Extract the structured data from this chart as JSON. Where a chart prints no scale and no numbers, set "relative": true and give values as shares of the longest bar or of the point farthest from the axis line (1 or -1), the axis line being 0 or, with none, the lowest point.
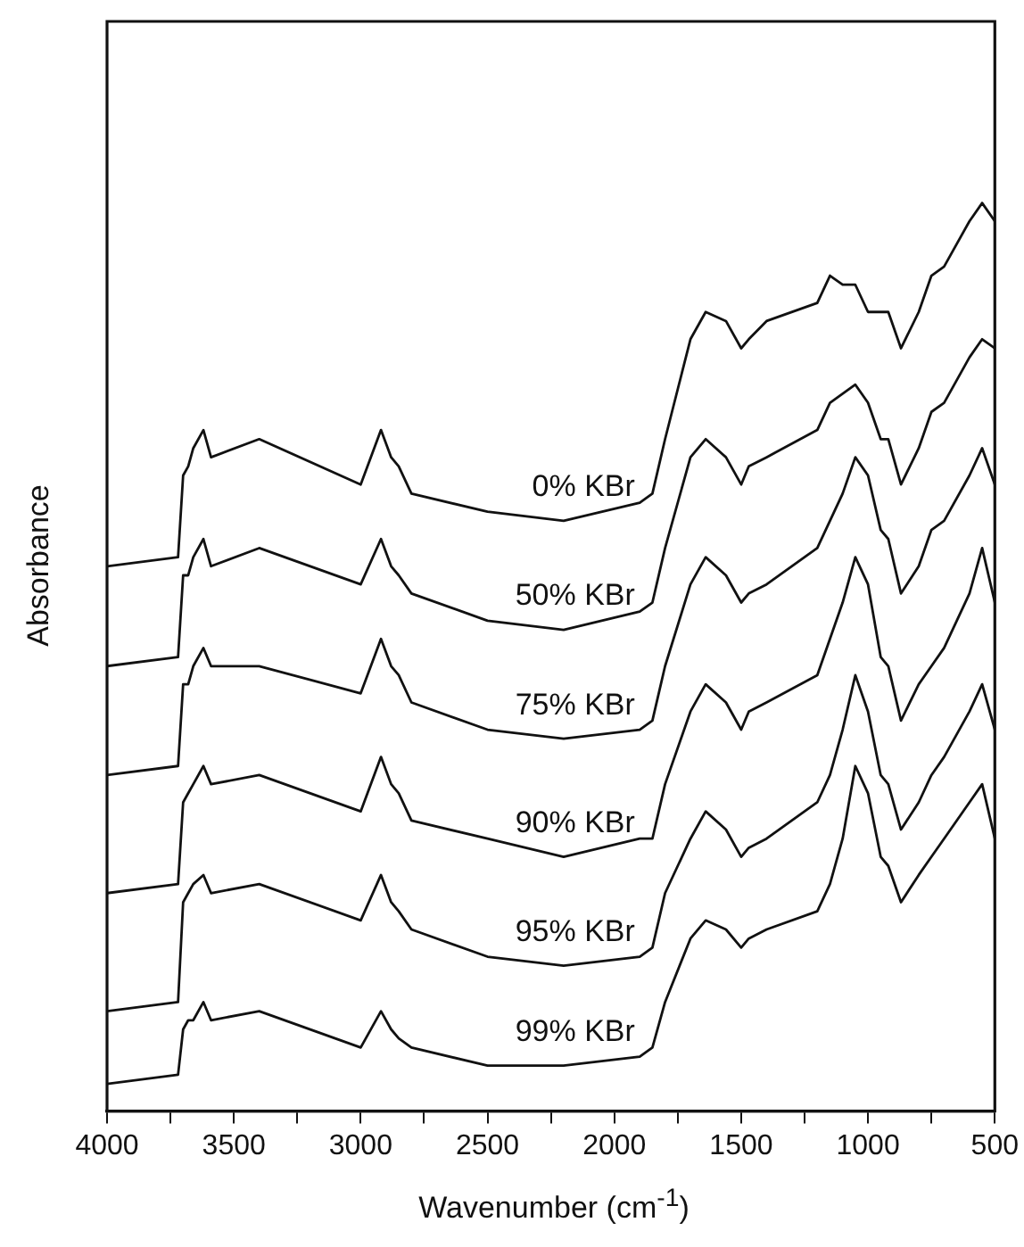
{
  "chart_data": {
    "type": "line",
    "xlabel": "Wavenumber (cm$^{-1}$)",
    "ylabel": "Absorbance",
    "relative": true,
    "grid": false,
    "legend": false,
    "marker": "none",
    "line_style": "solid",
    "xlim": [
      4000,
      500
    ],
    "xticks": [
      4000,
      {
        "value": 3750,
        "label": null
      },
      3500,
      {
        "value": 3250,
        "label": null
      },
      3000,
      {
        "value": 2750,
        "label": null
      },
      2500,
      {
        "value": 2250,
        "label": null
      },
      2000,
      {
        "value": 1750,
        "label": null
      },
      1500,
      {
        "value": 1250,
        "label": null
      },
      1000,
      {
        "value": 750,
        "label": null
      },
      500
    ],
    "x": [
      4000,
      3720,
      3700,
      3680,
      3660,
      3620,
      3590,
      3400,
      3000,
      2920,
      2880,
      2850,
      2800,
      2500,
      2200,
      1900,
      1850,
      1800,
      1700,
      1640,
      1560,
      1500,
      1470,
      1400,
      1200,
      1150,
      1100,
      1050,
      1000,
      950,
      920,
      870,
      800,
      750,
      700,
      600,
      550,
      500
    ],
    "series": [
      {
        "name": "0% KBr",
        "color": "#111111",
        "values": [
          0.6,
          0.61,
          0.7,
          0.71,
          0.73,
          0.75,
          0.72,
          0.74,
          0.69,
          0.75,
          0.72,
          0.71,
          0.68,
          0.66,
          0.65,
          0.67,
          0.68,
          0.74,
          0.85,
          0.88,
          0.87,
          0.84,
          0.85,
          0.87,
          0.89,
          0.92,
          0.91,
          0.91,
          0.88,
          0.88,
          0.88,
          0.84,
          0.88,
          0.92,
          0.93,
          0.98,
          1.0,
          0.98
        ]
      },
      {
        "name": "50% KBr",
        "color": "#111111",
        "values": [
          0.49,
          0.5,
          0.59,
          0.59,
          0.61,
          0.63,
          0.6,
          0.62,
          0.58,
          0.63,
          0.6,
          0.59,
          0.57,
          0.54,
          0.53,
          0.55,
          0.56,
          0.62,
          0.72,
          0.74,
          0.72,
          0.69,
          0.71,
          0.72,
          0.75,
          0.78,
          0.79,
          0.8,
          0.78,
          0.74,
          0.74,
          0.69,
          0.73,
          0.77,
          0.78,
          0.83,
          0.85,
          0.84
        ]
      },
      {
        "name": "75% KBr",
        "color": "#111111",
        "values": [
          0.37,
          0.38,
          0.47,
          0.47,
          0.49,
          0.51,
          0.49,
          0.49,
          0.46,
          0.52,
          0.49,
          0.48,
          0.45,
          0.42,
          0.41,
          0.42,
          0.43,
          0.49,
          0.58,
          0.61,
          0.59,
          0.56,
          0.57,
          0.58,
          0.62,
          0.65,
          0.68,
          0.72,
          0.7,
          0.64,
          0.63,
          0.57,
          0.6,
          0.64,
          0.65,
          0.7,
          0.73,
          0.69
        ]
      },
      {
        "name": "90% KBr",
        "color": "#111111",
        "values": [
          0.24,
          0.25,
          0.34,
          0.35,
          0.36,
          0.38,
          0.36,
          0.37,
          0.33,
          0.39,
          0.36,
          0.35,
          0.32,
          0.3,
          0.28,
          0.3,
          0.3,
          0.36,
          0.44,
          0.47,
          0.45,
          0.42,
          0.44,
          0.45,
          0.48,
          0.52,
          0.56,
          0.61,
          0.58,
          0.5,
          0.49,
          0.43,
          0.47,
          0.49,
          0.51,
          0.57,
          0.62,
          0.56
        ]
      },
      {
        "name": "95% KBr",
        "color": "#111111",
        "values": [
          0.11,
          0.12,
          0.23,
          0.24,
          0.25,
          0.26,
          0.24,
          0.25,
          0.21,
          0.26,
          0.23,
          0.22,
          0.2,
          0.17,
          0.16,
          0.17,
          0.18,
          0.24,
          0.3,
          0.33,
          0.31,
          0.28,
          0.29,
          0.3,
          0.34,
          0.37,
          0.42,
          0.48,
          0.44,
          0.37,
          0.36,
          0.31,
          0.34,
          0.37,
          0.39,
          0.44,
          0.47,
          0.42
        ]
      },
      {
        "name": "99% KBr",
        "color": "#111111",
        "values": [
          0.03,
          0.04,
          0.09,
          0.1,
          0.1,
          0.12,
          0.1,
          0.11,
          0.07,
          0.11,
          0.09,
          0.08,
          0.07,
          0.05,
          0.05,
          0.06,
          0.07,
          0.12,
          0.19,
          0.21,
          0.2,
          0.18,
          0.19,
          0.2,
          0.22,
          0.25,
          0.3,
          0.38,
          0.35,
          0.28,
          0.27,
          0.23,
          0.26,
          0.28,
          0.3,
          0.34,
          0.36,
          0.3
        ]
      }
    ]
  }
}
